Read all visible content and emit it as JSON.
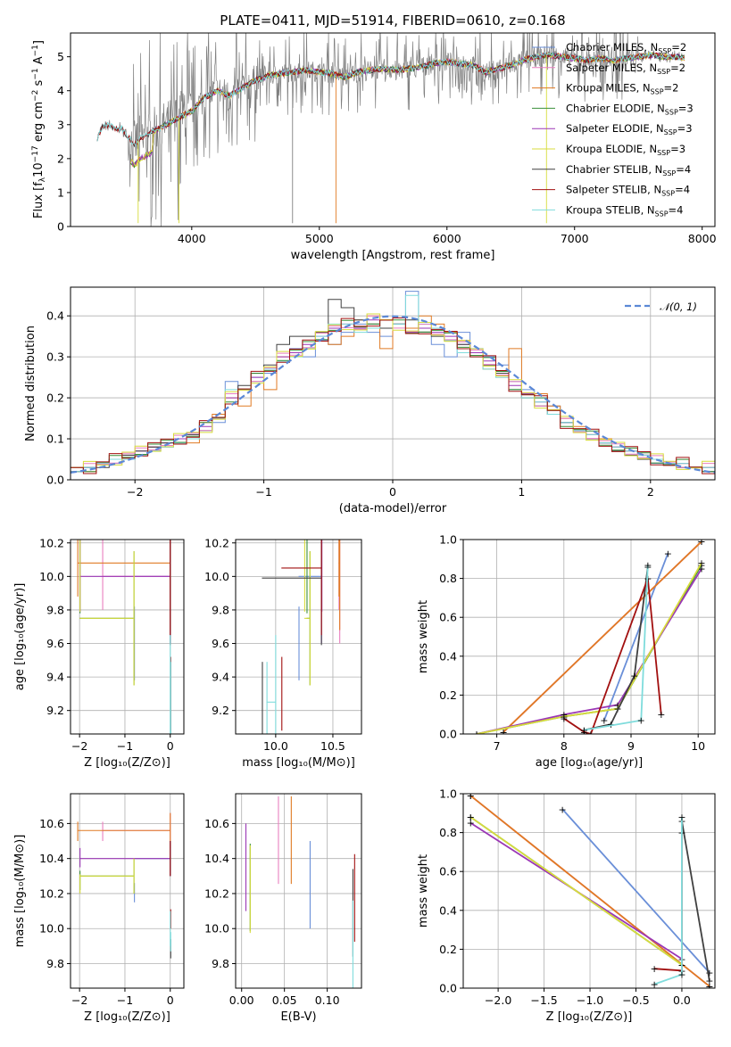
{
  "title": "PLATE=0411, MJD=51914, FIBERID=0610, z=0.168",
  "colors": {
    "cm": "#6a8fd8",
    "sm": "#e97fbf",
    "km": "#e07a23",
    "ce": "#3a8f3a",
    "se": "#9b37b5",
    "ke": "#d8dc3c",
    "cs": "#404040",
    "ss": "#a21010",
    "ks": "#7fdcdc",
    "obs": "#808080"
  },
  "chart_data": [
    {
      "type": "line",
      "title": "PLATE=0411, MJD=51914, FIBERID=0610, z=0.168",
      "xlabel": "wavelength [Angstrom, rest frame]",
      "ylabel": "Flux [fλ 10^-17 erg cm^-2 s^-1 A^-1]",
      "xlim": [
        3050,
        8100
      ],
      "ylim": [
        0,
        5.7
      ],
      "xticks": [
        "4000",
        "5000",
        "6000",
        "7000",
        "8000"
      ],
      "yticks": [
        "0",
        "1",
        "2",
        "3",
        "4",
        "5"
      ],
      "legend": [
        "Chabrier MILES, N_SSP=2",
        "Salpeter MILES, N_SSP=2",
        "Kroupa MILES, N_SSP=2",
        "Chabrier ELODIE, N_SSP=3",
        "Salpeter ELODIE, N_SSP=3",
        "Kroupa ELODIE, N_SSP=3",
        "Chabrier STELIB, N_SSP=4",
        "Salpeter STELIB, N_SSP=4",
        "Kroupa STELIB, N_SSP=4"
      ],
      "legend_html": [
        "Chabrier MILES, N<tspan dy='3' font-size='8'>SSP</tspan><tspan dy='-3'>=2</tspan>",
        "Salpeter MILES, N<tspan dy='3' font-size='8'>SSP</tspan><tspan dy='-3'>=2</tspan>",
        "Kroupa MILES, N<tspan dy='3' font-size='8'>SSP</tspan><tspan dy='-3'>=2</tspan>",
        "Chabrier ELODIE, N<tspan dy='3' font-size='8'>SSP</tspan><tspan dy='-3'>=3</tspan>",
        "Salpeter ELODIE, N<tspan dy='3' font-size='8'>SSP</tspan><tspan dy='-3'>=3</tspan>",
        "Kroupa ELODIE, N<tspan dy='3' font-size='8'>SSP</tspan><tspan dy='-3'>=3</tspan>",
        "Chabrier STELIB, N<tspan dy='3' font-size='8'>SSP</tspan><tspan dy='-3'>=4</tspan>",
        "Salpeter STELIB, N<tspan dy='3' font-size='8'>SSP</tspan><tspan dy='-3'>=4</tspan>",
        "Kroupa STELIB, N<tspan dy='3' font-size='8'>SSP</tspan><tspan dy='-3'>=4</tspan>"
      ],
      "legend_position": "upper right",
      "continuum": [
        [
          3260,
          2.6
        ],
        [
          3300,
          2.95
        ],
        [
          3350,
          3.0
        ],
        [
          3400,
          2.85
        ],
        [
          3450,
          2.9
        ],
        [
          3500,
          2.65
        ],
        [
          3550,
          2.4
        ],
        [
          3600,
          2.6
        ],
        [
          3650,
          2.7
        ],
        [
          3700,
          2.8
        ],
        [
          3800,
          3.0
        ],
        [
          3900,
          3.2
        ],
        [
          4000,
          3.4
        ],
        [
          4100,
          3.8
        ],
        [
          4200,
          4.0
        ],
        [
          4300,
          3.85
        ],
        [
          4400,
          4.1
        ],
        [
          4500,
          4.3
        ],
        [
          4600,
          4.45
        ],
        [
          4700,
          4.5
        ],
        [
          4800,
          4.55
        ],
        [
          4900,
          4.6
        ],
        [
          5000,
          4.55
        ],
        [
          5100,
          4.5
        ],
        [
          5200,
          4.4
        ],
        [
          5300,
          4.55
        ],
        [
          5400,
          4.6
        ],
        [
          5500,
          4.65
        ],
        [
          5600,
          4.6
        ],
        [
          5700,
          4.65
        ],
        [
          5800,
          4.7
        ],
        [
          5900,
          4.8
        ],
        [
          6000,
          4.85
        ],
        [
          6100,
          4.8
        ],
        [
          6200,
          4.75
        ],
        [
          6300,
          4.55
        ],
        [
          6400,
          4.65
        ],
        [
          6500,
          4.75
        ],
        [
          6600,
          4.9
        ],
        [
          6700,
          5.0
        ],
        [
          6800,
          5.05
        ],
        [
          6900,
          5.0
        ],
        [
          7000,
          4.95
        ],
        [
          7100,
          4.9
        ],
        [
          7200,
          4.95
        ],
        [
          7300,
          4.9
        ],
        [
          7400,
          4.95
        ],
        [
          7500,
          5.0
        ],
        [
          7600,
          5.05
        ],
        [
          7700,
          5.0
        ],
        [
          7800,
          5.0
        ],
        [
          7860,
          4.95
        ]
      ]
    },
    {
      "type": "histogram",
      "xlabel": "(data-model)/error",
      "ylabel": "Normed distribution",
      "xlim": [
        -2.5,
        2.5
      ],
      "ylim": [
        0,
        0.47
      ],
      "xticks": [
        "−2",
        "−1",
        "0",
        "1",
        "2"
      ],
      "yticks": [
        "0.0",
        "0.1",
        "0.2",
        "0.3",
        "0.4"
      ],
      "legend": "𝒩(0, 1)",
      "legend_position": "upper right",
      "bin_width": 0.1,
      "series": [
        {
          "name": "Chabrier MILES",
          "values": [
            0.02,
            0.03,
            0.04,
            0.04,
            0.05,
            0.06,
            0.07,
            0.08,
            0.09,
            0.1,
            0.12,
            0.14,
            0.24,
            0.22,
            0.25,
            0.26,
            0.29,
            0.32,
            0.3,
            0.34,
            0.33,
            0.36,
            0.38,
            0.36,
            0.35,
            0.38,
            0.46,
            0.37,
            0.33,
            0.3,
            0.36,
            0.32,
            0.3,
            0.28,
            0.24,
            0.22,
            0.2,
            0.18,
            0.14,
            0.12,
            0.1,
            0.09,
            0.07,
            0.06,
            0.05,
            0.04,
            0.04,
            0.03,
            0.03,
            0.02
          ]
        },
        {
          "name": "Kroupa MILES",
          "values": [
            0.02,
            0.02,
            0.04,
            0.05,
            0.06,
            0.06,
            0.08,
            0.09,
            0.1,
            0.09,
            0.14,
            0.16,
            0.2,
            0.18,
            0.24,
            0.22,
            0.3,
            0.31,
            0.32,
            0.36,
            0.33,
            0.35,
            0.39,
            0.4,
            0.32,
            0.38,
            0.37,
            0.4,
            0.38,
            0.36,
            0.34,
            0.3,
            0.27,
            0.25,
            0.32,
            0.2,
            0.21,
            0.18,
            0.15,
            0.13,
            0.11,
            0.1,
            0.08,
            0.07,
            0.06,
            0.05,
            0.04,
            0.04,
            0.03,
            0.03
          ]
        },
        {
          "name": "Salpeter ELODIE",
          "values": [
            0.03,
            0.03,
            0.04,
            0.05,
            0.06,
            0.07,
            0.08,
            0.09,
            0.1,
            0.11,
            0.13,
            0.15,
            0.2,
            0.22,
            0.25,
            0.27,
            0.3,
            0.31,
            0.33,
            0.35,
            0.37,
            0.38,
            0.37,
            0.39,
            0.39,
            0.38,
            0.36,
            0.37,
            0.36,
            0.35,
            0.33,
            0.31,
            0.29,
            0.26,
            0.23,
            0.21,
            0.19,
            0.17,
            0.14,
            0.12,
            0.11,
            0.09,
            0.08,
            0.07,
            0.06,
            0.05,
            0.04,
            0.04,
            0.03,
            0.03
          ]
        },
        {
          "name": "Chabrier STELIB",
          "values": [
            0.02,
            0.03,
            0.03,
            0.05,
            0.06,
            0.07,
            0.08,
            0.09,
            0.09,
            0.11,
            0.12,
            0.15,
            0.21,
            0.23,
            0.26,
            0.28,
            0.33,
            0.35,
            0.35,
            0.36,
            0.44,
            0.42,
            0.39,
            0.38,
            0.37,
            0.38,
            0.39,
            0.36,
            0.35,
            0.34,
            0.33,
            0.3,
            0.28,
            0.26,
            0.22,
            0.2,
            0.18,
            0.16,
            0.14,
            0.12,
            0.1,
            0.09,
            0.07,
            0.06,
            0.05,
            0.05,
            0.04,
            0.03,
            0.03,
            0.02
          ]
        },
        {
          "name": "Kroupa STELIB",
          "values": [
            0.02,
            0.03,
            0.04,
            0.05,
            0.05,
            0.06,
            0.07,
            0.08,
            0.09,
            0.1,
            0.12,
            0.15,
            0.22,
            0.22,
            0.24,
            0.27,
            0.29,
            0.3,
            0.32,
            0.35,
            0.38,
            0.38,
            0.36,
            0.37,
            0.39,
            0.38,
            0.45,
            0.38,
            0.37,
            0.34,
            0.31,
            0.3,
            0.27,
            0.25,
            0.22,
            0.2,
            0.19,
            0.16,
            0.14,
            0.12,
            0.11,
            0.09,
            0.08,
            0.07,
            0.06,
            0.05,
            0.04,
            0.04,
            0.03,
            0.03
          ]
        }
      ]
    }
  ],
  "panel3": {
    "xlabel": "Z [log₁₀(Z/Z⊙)]",
    "ylabel": "age  [log₁₀(age/yr)]",
    "xticks": [
      "−2",
      "−1",
      "0"
    ],
    "yticks": [
      "9.2",
      "9.4",
      "9.6",
      "9.8",
      "10.0",
      "10.2"
    ]
  },
  "panel4": {
    "xlabel": "mass [log₁₀(M/M⊙)]",
    "xticks": [
      "10.0",
      "10.5"
    ],
    "yticks": [
      "9.2",
      "9.4",
      "9.6",
      "9.8",
      "10.0",
      "10.2"
    ]
  },
  "panel5": {
    "xlabel": "age  [log₁₀(age/yr)]",
    "ylabel": "mass weight",
    "xticks": [
      "7",
      "8",
      "9",
      "10"
    ],
    "yticks": [
      "0.0",
      "0.2",
      "0.4",
      "0.6",
      "0.8",
      "1.0"
    ]
  },
  "panel6": {
    "xlabel": "Z [log₁₀(Z/Z⊙)]",
    "ylabel": "mass [log₁₀(M/M⊙)]",
    "xticks": [
      "−2",
      "−1",
      "0"
    ],
    "yticks": [
      "9.8",
      "10.0",
      "10.2",
      "10.4",
      "10.6"
    ]
  },
  "panel7": {
    "xlabel": "E(B-V)",
    "xticks": [
      "0.00",
      "0.05",
      "0.10"
    ],
    "yticks": [
      "9.8",
      "10.0",
      "10.2",
      "10.4",
      "10.6"
    ]
  },
  "panel8": {
    "xlabel": "Z [log₁₀(Z/Z⊙)]",
    "ylabel": "mass weight",
    "xticks": [
      "−2.0",
      "−1.5",
      "−1.0",
      "−0.5",
      "0.0"
    ],
    "yticks": [
      "0.0",
      "0.2",
      "0.4",
      "0.6",
      "0.8",
      "1.0"
    ]
  },
  "fits": [
    {
      "key": "cm",
      "age": [
        9.58,
        10.0
      ],
      "Z": [
        -0.8,
        0.0
      ],
      "mass": [
        10.2,
        10.4
      ],
      "ebv": 0.08,
      "mw_age": [
        [
          8.6,
          0.07
        ],
        [
          9.55,
          0.93
        ]
      ],
      "mw_Z": [
        [
          -1.3,
          0.92
        ],
        [
          0.3,
          0.08
        ]
      ]
    },
    {
      "key": "sm",
      "age": [
        10.0,
        10.0
      ],
      "Z": [
        -1.5,
        0.0
      ],
      "mass": [
        10.55,
        10.56
      ],
      "ebv": 0.043,
      "mw_age": [
        [
          7.1,
          0.01
        ],
        [
          10.05,
          0.99
        ]
      ],
      "mw_Z": [
        [
          -2.3,
          0.99
        ],
        [
          0.3,
          0.01
        ]
      ]
    },
    {
      "key": "km",
      "age": [
        10.08,
        10.08
      ],
      "Z": [
        -2.05,
        0.0
      ],
      "mass": [
        10.55,
        10.56
      ],
      "ebv": 0.058,
      "mw_age": [
        [
          7.1,
          0.01
        ],
        [
          10.05,
          0.99
        ]
      ],
      "mw_Z": [
        [
          -2.3,
          0.99
        ],
        [
          0.3,
          0.01
        ]
      ]
    },
    {
      "key": "ce",
      "age": [
        9.98,
        9.75
      ],
      "Z": [
        -2.0,
        -0.8
      ],
      "mass": [
        10.27,
        10.3
      ],
      "ebv": 0.01,
      "mw_age": [
        [
          6.7,
          0.0
        ],
        [
          8.0,
          0.09
        ],
        [
          8.8,
          0.13
        ],
        [
          10.05,
          0.87
        ]
      ],
      "mw_Z": [
        [
          -2.3,
          0.88
        ],
        [
          0.0,
          0.12
        ]
      ]
    },
    {
      "key": "se",
      "age": [
        9.99,
        10.0
      ],
      "Z": [
        -2.0,
        0.0
      ],
      "mass": [
        10.4,
        10.4
      ],
      "ebv": 0.005,
      "mw_age": [
        [
          6.7,
          0.0
        ],
        [
          8.0,
          0.1
        ],
        [
          8.8,
          0.15
        ],
        [
          10.05,
          0.85
        ]
      ],
      "mw_Z": [
        [
          -2.3,
          0.85
        ],
        [
          0.0,
          0.15
        ]
      ]
    },
    {
      "key": "ke",
      "age": [
        9.99,
        9.75
      ],
      "Z": [
        -2.0,
        -0.8
      ],
      "mass": [
        10.25,
        10.3
      ],
      "ebv": 0.01,
      "mw_age": [
        [
          6.7,
          0.0
        ],
        [
          8.0,
          0.09
        ],
        [
          8.8,
          0.13
        ],
        [
          10.05,
          0.88
        ]
      ],
      "mw_Z": [
        [
          -2.3,
          0.88
        ],
        [
          0.0,
          0.12
        ]
      ]
    },
    {
      "key": "cs",
      "age": [
        9.25,
        9.99
      ],
      "Z": [
        0.0,
        0.0
      ],
      "mass": [
        9.88,
        10.4
      ],
      "ebv": 0.13,
      "mw_age": [
        [
          8.3,
          0.02
        ],
        [
          8.7,
          0.05
        ],
        [
          9.05,
          0.3
        ],
        [
          9.25,
          0.86
        ]
      ],
      "mw_Z": [
        [
          0.0,
          0.86
        ],
        [
          0.3,
          0.04
        ]
      ]
    },
    {
      "key": "ss",
      "age": [
        9.28,
        10.05
      ],
      "Z": [
        0.0,
        0.0
      ],
      "mass": [
        10.05,
        10.4
      ],
      "ebv": 0.132,
      "mw_age": [
        [
          8.0,
          0.08
        ],
        [
          8.3,
          0.01
        ],
        [
          8.4,
          0.0
        ],
        [
          9.25,
          0.8
        ],
        [
          9.45,
          0.1
        ]
      ],
      "mw_Z": [
        [
          -0.3,
          0.1
        ],
        [
          0.0,
          0.09
        ],
        [
          0.0,
          0.8
        ]
      ]
    },
    {
      "key": "ks",
      "age": [
        9.25,
        9.25
      ],
      "Z": [
        0.0,
        0.0
      ],
      "mass": [
        9.92,
        10.0
      ],
      "ebv": 0.13,
      "mw_age": [
        [
          8.3,
          0.02
        ],
        [
          9.15,
          0.07
        ],
        [
          9.25,
          0.87
        ]
      ],
      "mw_Z": [
        [
          -0.3,
          0.02
        ],
        [
          0.0,
          0.07
        ],
        [
          0.0,
          0.88
        ]
      ]
    }
  ]
}
